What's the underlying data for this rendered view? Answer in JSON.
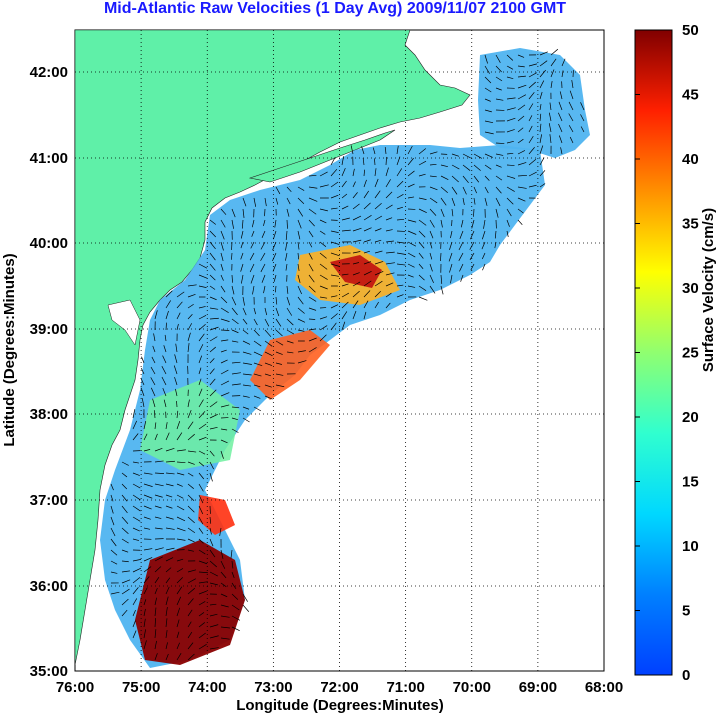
{
  "title": "Mid-Atlantic Raw Velocities (1 Day Avg) 2009/11/07 2100 GMT",
  "xlabel": "Longitude (Degrees:Minutes)",
  "ylabel": "Latitude (Degrees:Minutes)",
  "colorbar_label": "Surface Velocity (cm/s)",
  "x_ticks": [
    "76:00",
    "75:00",
    "74:00",
    "73:00",
    "72:00",
    "71:00",
    "70:00",
    "69:00",
    "68:00"
  ],
  "y_ticks": [
    "35:00",
    "36:00",
    "37:00",
    "38:00",
    "39:00",
    "40:00",
    "41:00",
    "42:00"
  ],
  "colorbar_ticks": [
    "0",
    "5",
    "10",
    "15",
    "20",
    "25",
    "30",
    "35",
    "40",
    "45",
    "50"
  ],
  "colors": {
    "land": "#5ff0a8",
    "title": "#1a1aff",
    "grid": "#000000"
  }
}
